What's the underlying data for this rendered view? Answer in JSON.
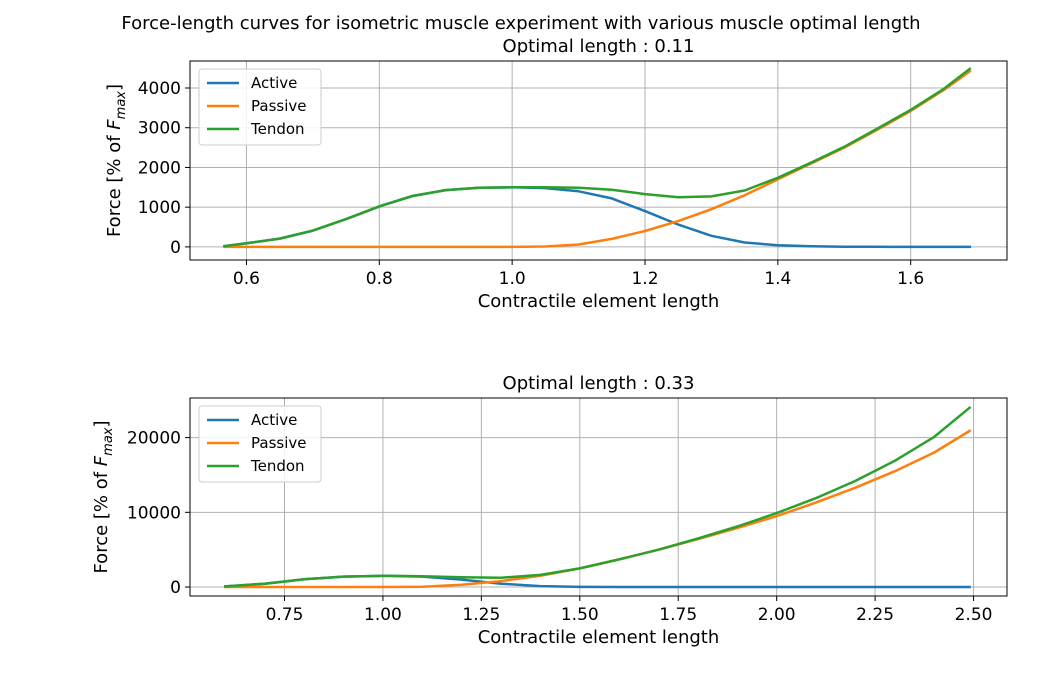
{
  "figure": {
    "suptitle": "Force-length curves for isometric muscle experiment with various muscle optimal length"
  },
  "colors": {
    "active": "#1f77b4",
    "passive": "#ff7f0e",
    "tendon": "#2ca02c"
  },
  "chart_data": [
    {
      "type": "line",
      "title": "Optimal length : 0.11",
      "xlabel": "Contractile element length",
      "ylabel_parts": [
        "Force [% of ",
        "F",
        "max",
        "]"
      ],
      "xlim": [
        0.515,
        1.745
      ],
      "ylim": [
        -330,
        4680
      ],
      "xticks": [
        0.6,
        0.8,
        1.0,
        1.2,
        1.4,
        1.6
      ],
      "xtick_labels": [
        "0.6",
        "0.8",
        "1.0",
        "1.2",
        "1.4",
        "1.6"
      ],
      "yticks": [
        0,
        1000,
        2000,
        3000,
        4000
      ],
      "ytick_labels": [
        "0",
        "1000",
        "2000",
        "3000",
        "4000"
      ],
      "grid": true,
      "legend": "upper-left",
      "x": [
        0.567,
        0.6,
        0.65,
        0.7,
        0.75,
        0.8,
        0.85,
        0.9,
        0.95,
        1.0,
        1.05,
        1.1,
        1.15,
        1.2,
        1.25,
        1.3,
        1.35,
        1.4,
        1.45,
        1.5,
        1.55,
        1.6,
        1.65,
        1.689
      ],
      "series": [
        {
          "name": "Active",
          "color_key": "active",
          "values": [
            20,
            90,
            210,
            410,
            700,
            1020,
            1280,
            1430,
            1490,
            1500,
            1480,
            1400,
            1220,
            900,
            560,
            280,
            110,
            40,
            15,
            5,
            2,
            0,
            0,
            0
          ]
        },
        {
          "name": "Passive",
          "color_key": "passive",
          "values": [
            0,
            0,
            0,
            0,
            0,
            0,
            0,
            0,
            0,
            0,
            10,
            60,
            200,
            400,
            650,
            950,
            1300,
            1700,
            2100,
            2500,
            2950,
            3420,
            3950,
            4420
          ]
        },
        {
          "name": "Tendon",
          "color_key": "tendon",
          "values": [
            20,
            90,
            210,
            410,
            700,
            1020,
            1280,
            1430,
            1490,
            1500,
            1500,
            1490,
            1440,
            1330,
            1250,
            1270,
            1420,
            1740,
            2120,
            2520,
            2980,
            3450,
            3980,
            4480
          ]
        }
      ]
    },
    {
      "type": "line",
      "title": "Optimal length : 0.33",
      "xlabel": "Contractile element length",
      "ylabel_parts": [
        "Force [% of ",
        "F",
        "max",
        "]"
      ],
      "xlim": [
        0.51,
        2.585
      ],
      "ylim": [
        -1200,
        25300
      ],
      "xticks": [
        0.75,
        1.0,
        1.25,
        1.5,
        1.75,
        2.0,
        2.25,
        2.5
      ],
      "xtick_labels": [
        "0.75",
        "1.00",
        "1.25",
        "1.50",
        "1.75",
        "2.00",
        "2.25",
        "2.50"
      ],
      "yticks": [
        0,
        10000,
        20000
      ],
      "ytick_labels": [
        "0",
        "10000",
        "20000"
      ],
      "grid": true,
      "legend": "upper-left",
      "x": [
        0.6,
        0.7,
        0.8,
        0.9,
        1.0,
        1.1,
        1.2,
        1.3,
        1.4,
        1.5,
        1.6,
        1.7,
        1.8,
        1.9,
        2.0,
        2.1,
        2.2,
        2.3,
        2.4,
        2.49
      ],
      "series": [
        {
          "name": "Active",
          "color_key": "active",
          "values": [
            80,
            450,
            1050,
            1400,
            1500,
            1400,
            1000,
            450,
            120,
            20,
            0,
            0,
            0,
            0,
            0,
            0,
            0,
            0,
            0,
            0
          ]
        },
        {
          "name": "Passive",
          "color_key": "passive",
          "values": [
            0,
            0,
            0,
            0,
            0,
            50,
            300,
            800,
            1500,
            2500,
            3700,
            5000,
            6400,
            7900,
            9500,
            11300,
            13300,
            15500,
            18000,
            20900
          ]
        },
        {
          "name": "Tendon",
          "color_key": "tendon",
          "values": [
            80,
            450,
            1050,
            1400,
            1500,
            1450,
            1300,
            1250,
            1620,
            2500,
            3700,
            5000,
            6500,
            8100,
            9900,
            11900,
            14200,
            16900,
            20100,
            24000
          ]
        }
      ]
    }
  ]
}
